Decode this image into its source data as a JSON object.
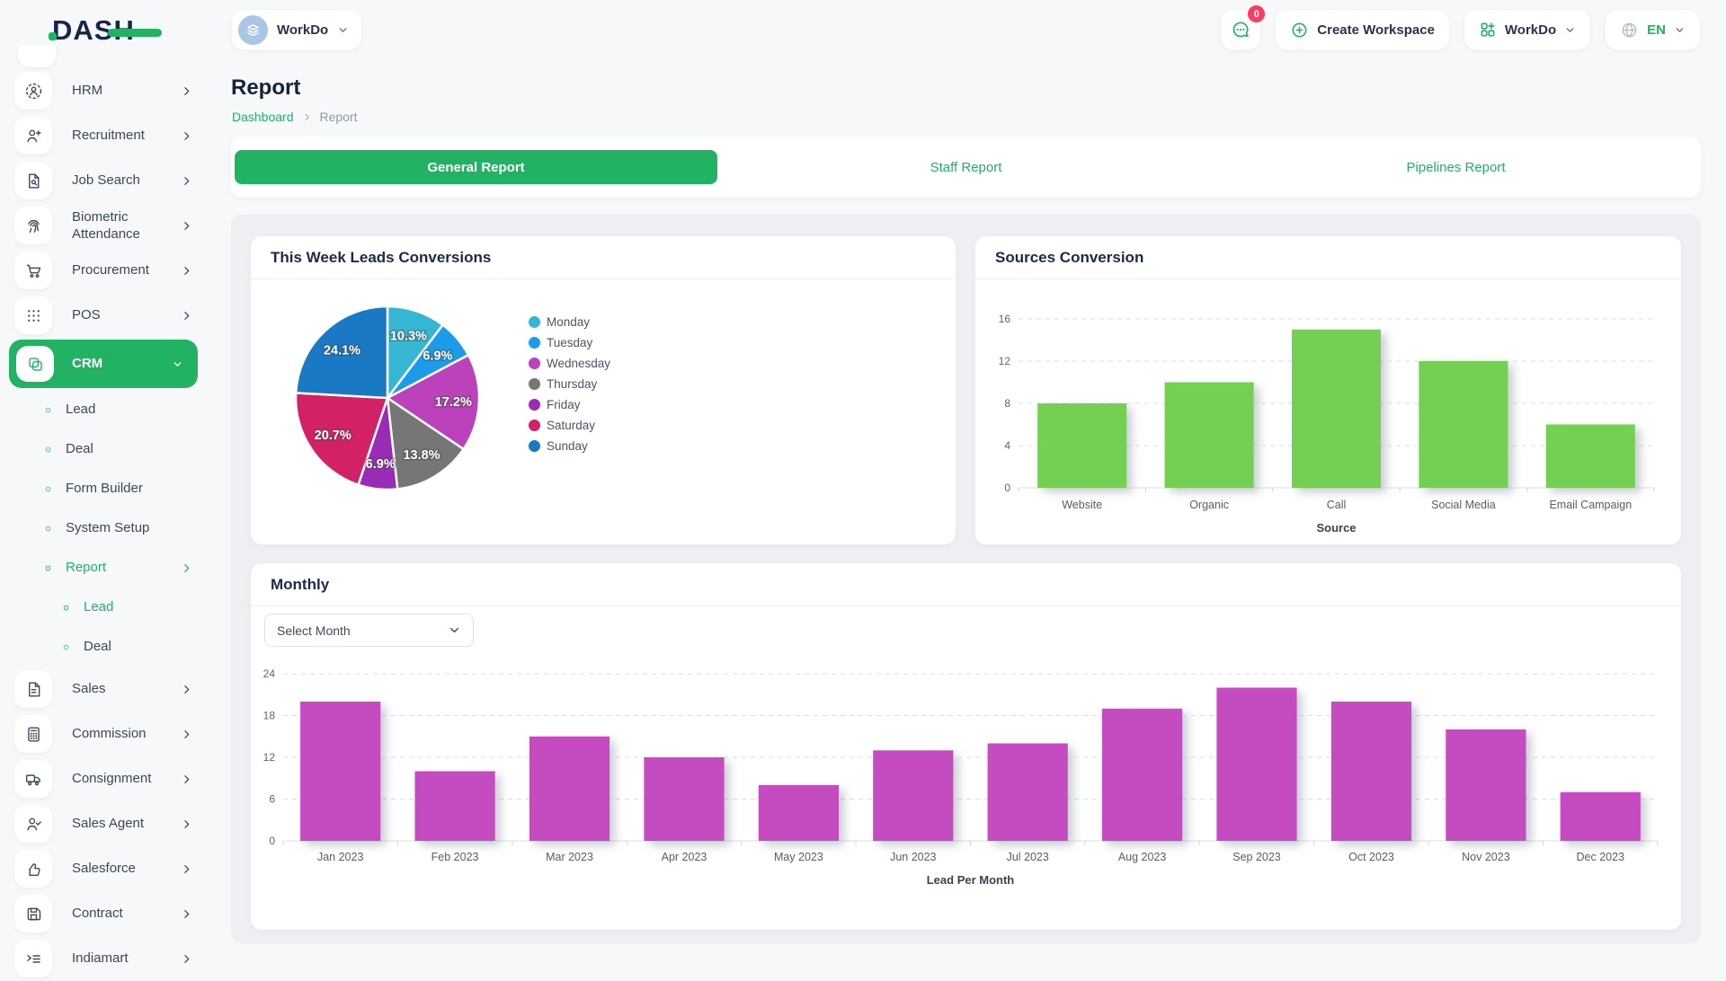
{
  "topbar": {
    "logo_text": "DASH",
    "workspace_switcher": {
      "label": "WorkDo"
    },
    "messages_badge": "0",
    "create_workspace_label": "Create Workspace",
    "workdo_menu_label": "WorkDo",
    "language": "EN"
  },
  "sidebar": {
    "items": [
      {
        "kind": "root",
        "label": "HRM",
        "icon": "hrm",
        "chevron": "right"
      },
      {
        "kind": "root",
        "label": "Recruitment",
        "icon": "user-plus",
        "chevron": "right"
      },
      {
        "kind": "root",
        "label": "Job Search",
        "icon": "file-search",
        "chevron": "right"
      },
      {
        "kind": "root",
        "label": "Biometric Attendance",
        "icon": "fingerprint",
        "chevron": "right"
      },
      {
        "kind": "root",
        "label": "Procurement",
        "icon": "cart",
        "chevron": "right"
      },
      {
        "kind": "root",
        "label": "POS",
        "icon": "grid-dots",
        "chevron": "right"
      },
      {
        "kind": "root",
        "label": "CRM",
        "icon": "crm",
        "chevron": "down",
        "active": true
      },
      {
        "kind": "sub",
        "label": "Lead"
      },
      {
        "kind": "sub",
        "label": "Deal"
      },
      {
        "kind": "sub",
        "label": "Form Builder"
      },
      {
        "kind": "sub",
        "label": "System Setup"
      },
      {
        "kind": "sub",
        "label": "Report",
        "active": true,
        "chevron": "right"
      },
      {
        "kind": "subsub",
        "label": "Lead",
        "active": true
      },
      {
        "kind": "subsub",
        "label": "Deal"
      },
      {
        "kind": "root",
        "label": "Sales",
        "icon": "file",
        "chevron": "right"
      },
      {
        "kind": "root",
        "label": "Commission",
        "icon": "calculator",
        "chevron": "right"
      },
      {
        "kind": "root",
        "label": "Consignment",
        "icon": "truck",
        "chevron": "right"
      },
      {
        "kind": "root",
        "label": "Sales Agent",
        "icon": "user-check",
        "chevron": "right"
      },
      {
        "kind": "root",
        "label": "Salesforce",
        "icon": "thumbs-up",
        "chevron": "right"
      },
      {
        "kind": "root",
        "label": "Contract",
        "icon": "save",
        "chevron": "right"
      },
      {
        "kind": "root",
        "label": "Indiamart",
        "icon": "list-arrow",
        "chevron": "right"
      }
    ]
  },
  "page": {
    "title": "Report",
    "breadcrumb": [
      "Dashboard",
      "Report"
    ]
  },
  "tabs": [
    {
      "label": "General Report",
      "active": true
    },
    {
      "label": "Staff Report",
      "active": false
    },
    {
      "label": "Pipelines Report",
      "active": false
    }
  ],
  "cards": {
    "pie_title": "This Week Leads Conversions",
    "sources_title": "Sources Conversion",
    "monthly_title": "Monthly",
    "month_select_label": "Select Month"
  },
  "colors": {
    "accent_green": "#22b263",
    "badge_red": "#fb3b64",
    "sources_bar": "#73d052",
    "monthly_bar": "#c44bc0"
  },
  "chart_data": [
    {
      "type": "pie",
      "title": "This Week Leads Conversions",
      "labels": [
        "Monday",
        "Tuesday",
        "Wednesday",
        "Thursday",
        "Friday",
        "Saturday",
        "Sunday"
      ],
      "values": [
        10.3,
        6.9,
        17.2,
        13.8,
        6.9,
        20.7,
        24.1
      ],
      "unit": "percent",
      "colors": [
        "#35b6d3",
        "#1b9ceb",
        "#bc42bc",
        "#767676",
        "#9a2bb5",
        "#d22167",
        "#1a79c5"
      ],
      "legend_position": "right",
      "start_angle": "top-clockwise"
    },
    {
      "type": "bar",
      "title": "Sources Conversion",
      "categories": [
        "Website",
        "Organic",
        "Call",
        "Social Media",
        "Email Campaign"
      ],
      "values": [
        8,
        10,
        15,
        12,
        6
      ],
      "xlabel": "Source",
      "ylabel": "",
      "ylim": [
        0,
        16
      ],
      "yticks": [
        0,
        4,
        8,
        12,
        16
      ],
      "grid": "dashed-horizontal",
      "bar_color": "#73d052"
    },
    {
      "type": "bar",
      "title": "Monthly",
      "categories": [
        "Jan 2023",
        "Feb 2023",
        "Mar 2023",
        "Apr 2023",
        "May 2023",
        "Jun 2023",
        "Jul 2023",
        "Aug 2023",
        "Sep 2023",
        "Oct 2023",
        "Nov 2023",
        "Dec 2023"
      ],
      "values": [
        20,
        10,
        15,
        12,
        8,
        13,
        14,
        19,
        22,
        20,
        16,
        7
      ],
      "xlabel": "Lead Per Month",
      "ylabel": "",
      "ylim": [
        0,
        24
      ],
      "yticks": [
        0,
        6,
        12,
        18,
        24
      ],
      "grid": "dashed-horizontal",
      "bar_color": "#c44bc0"
    }
  ]
}
